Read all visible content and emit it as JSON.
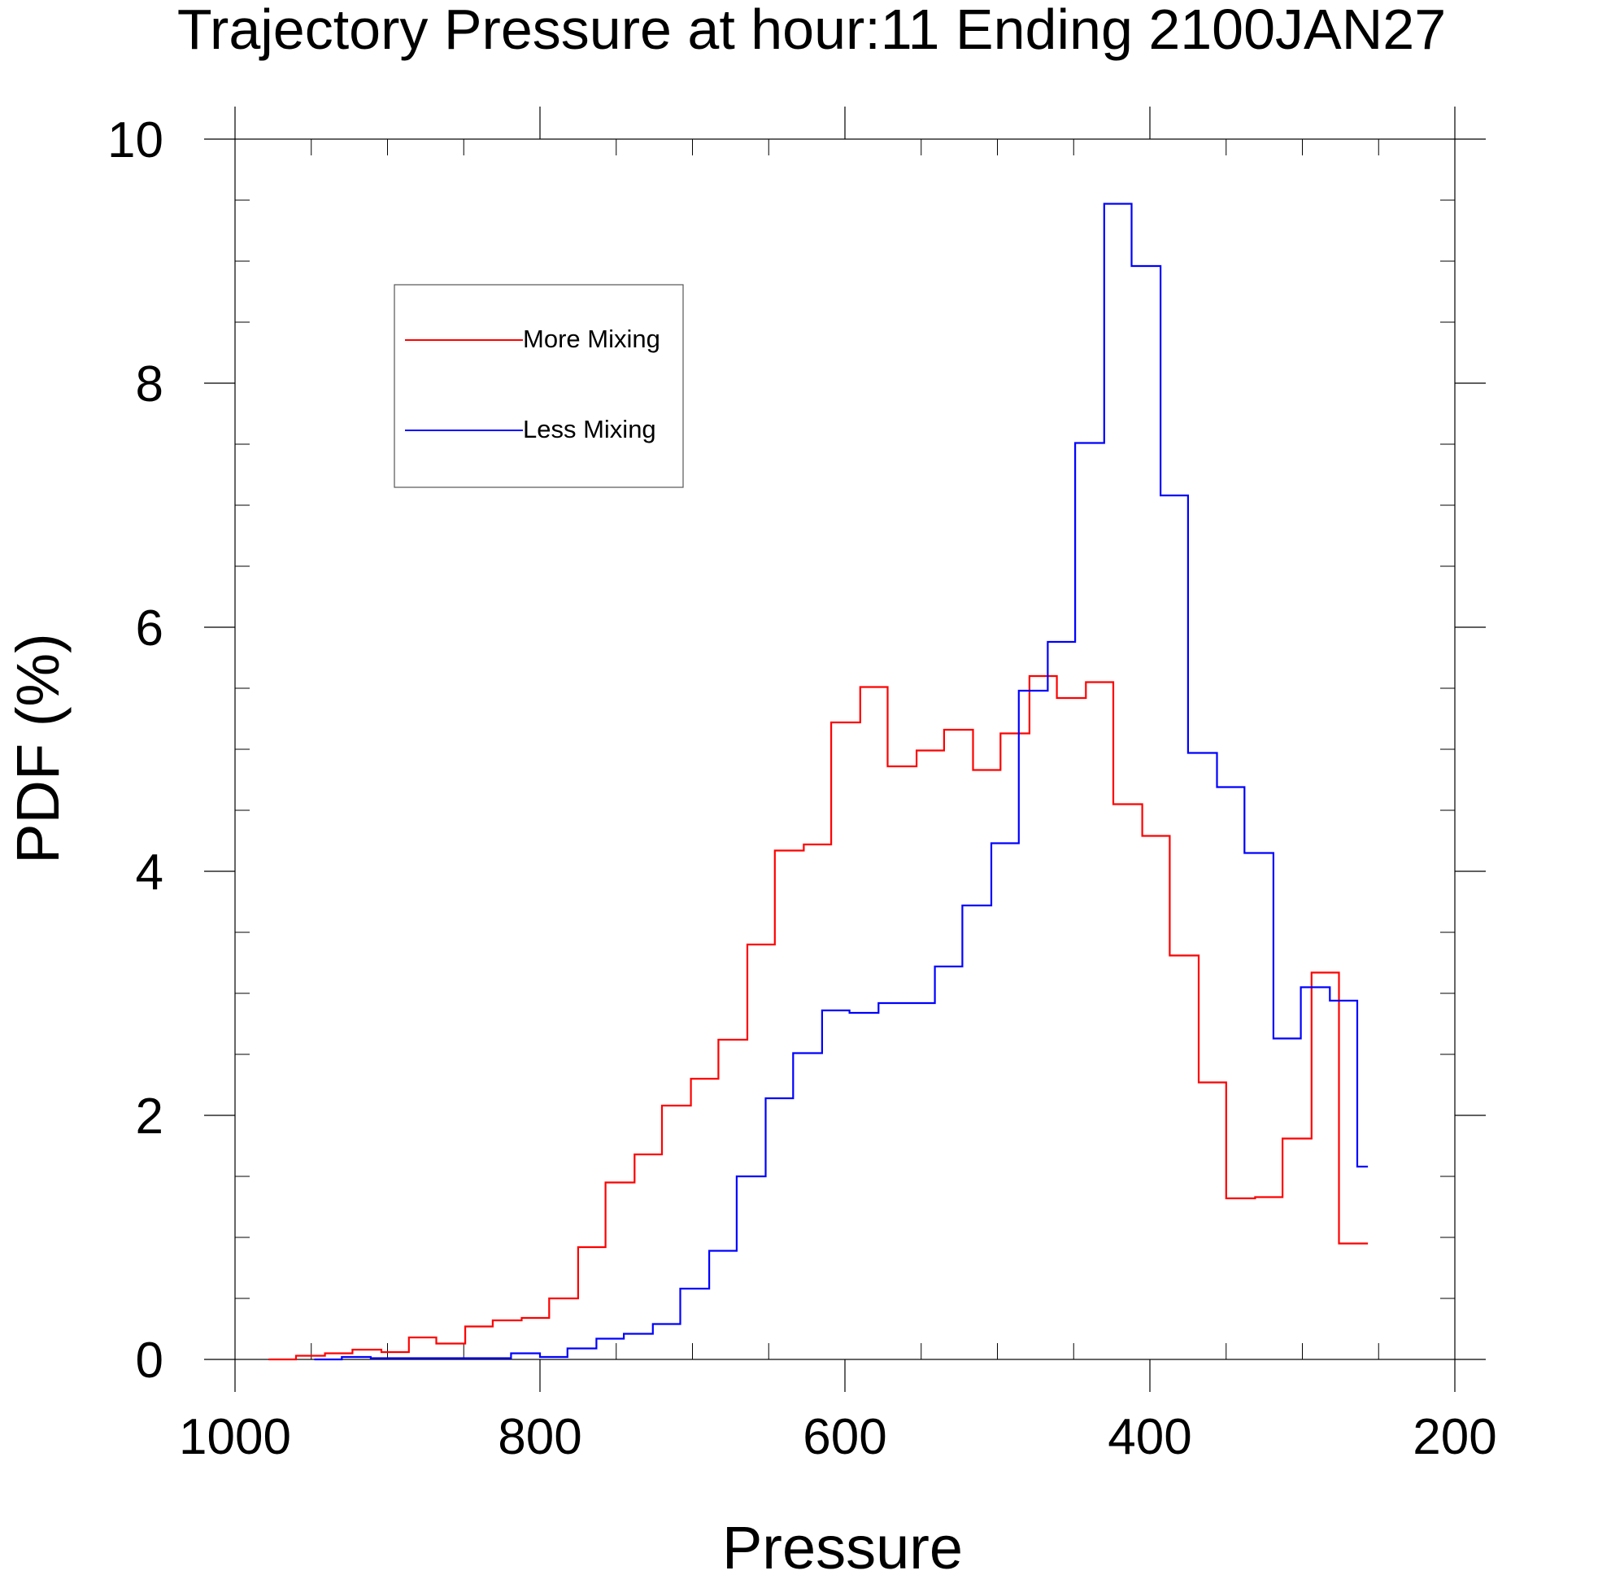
{
  "chart_data": {
    "type": "line",
    "step": true,
    "title": "Trajectory Pressure at hour:11 Ending 2100JAN27",
    "xlabel": "Pressure",
    "ylabel": "PDF (%)",
    "xlim": [
      1000,
      200
    ],
    "ylim": [
      0,
      10
    ],
    "x_reversed": true,
    "x_ticks": [
      1000,
      800,
      600,
      400,
      200
    ],
    "x_tick_labels": [
      "1000",
      "800",
      "600",
      "400",
      "200"
    ],
    "y_ticks": [
      0,
      2,
      4,
      6,
      8,
      10
    ],
    "y_tick_labels": [
      "0",
      "2",
      "4",
      "6",
      "8",
      "10"
    ],
    "grid": false,
    "legend_position": "top-left",
    "series": [
      {
        "name": "More Mixing",
        "color": "#ff0000",
        "x": [
          978,
          960,
          941,
          923,
          904,
          886,
          868,
          849,
          831,
          812,
          794,
          775,
          757,
          738,
          720,
          701,
          683,
          664,
          646,
          627,
          609,
          590,
          572,
          553,
          535,
          516,
          498,
          479,
          461,
          442,
          424,
          405,
          387,
          368,
          350,
          331,
          313,
          294,
          276,
          257
        ],
        "y": [
          0.0,
          0.03,
          0.05,
          0.08,
          0.06,
          0.18,
          0.13,
          0.27,
          0.32,
          0.34,
          0.5,
          0.92,
          1.45,
          1.68,
          2.08,
          2.3,
          2.62,
          3.4,
          4.17,
          4.22,
          5.22,
          5.51,
          4.86,
          4.99,
          5.16,
          4.83,
          5.13,
          5.6,
          5.42,
          5.55,
          4.55,
          4.29,
          3.31,
          2.27,
          1.32,
          1.33,
          1.81,
          3.17,
          0.95,
          0.95
        ]
      },
      {
        "name": "Less Mixing",
        "color": "#0000ff",
        "x": [
          948,
          930,
          911,
          893,
          874,
          856,
          837,
          819,
          800,
          782,
          763,
          745,
          726,
          708,
          689,
          671,
          652,
          634,
          615,
          597,
          578,
          560,
          541,
          523,
          504,
          486,
          467,
          449,
          430,
          412,
          393,
          375,
          356,
          338,
          319,
          301,
          282,
          264
        ],
        "y": [
          0.0,
          0.02,
          0.01,
          0.01,
          0.01,
          0.01,
          0.01,
          0.05,
          0.02,
          0.09,
          0.17,
          0.21,
          0.29,
          0.58,
          0.89,
          1.5,
          2.14,
          2.51,
          2.86,
          2.84,
          2.92,
          2.92,
          3.22,
          3.72,
          4.23,
          5.48,
          5.88,
          7.51,
          9.47,
          8.96,
          7.08,
          4.97,
          4.69,
          4.15,
          2.63,
          3.05,
          2.94,
          1.58
        ]
      }
    ],
    "series_ends": [
      257,
      257
    ]
  }
}
